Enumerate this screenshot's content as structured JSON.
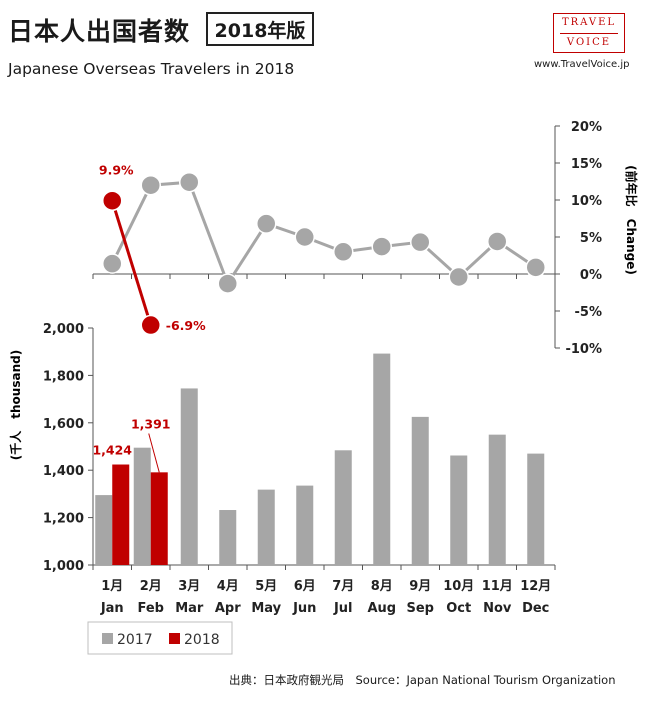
{
  "header": {
    "title": "日本人出国者数",
    "edition": "2018年版",
    "subtitle": "Japanese Overseas Travelers in 2018",
    "logo_line1": "TRAVEL",
    "logo_line2": "VOICE",
    "website": "www.TravelVoice.jp",
    "source": "出典：日本政府観光局　Source：Japan  National Tourism   Organization"
  },
  "colors": {
    "series_2017": "#a6a6a6",
    "series_2018": "#c00000",
    "axis": "#555555",
    "logo": "#c00000"
  },
  "chart_data": [
    {
      "type": "bar",
      "categories": [
        "1月",
        "2月",
        "3月",
        "4月",
        "5月",
        "6月",
        "7月",
        "8月",
        "9月",
        "10月",
        "11月",
        "12月"
      ],
      "categories_en": [
        "Jan",
        "Feb",
        "Mar",
        "Apr",
        "May",
        "Jun",
        "Jul",
        "Aug",
        "Sep",
        "Oct",
        "Nov",
        "Dec"
      ],
      "series": [
        {
          "name": "2017",
          "values": [
            1295,
            1495,
            1745,
            1232,
            1318,
            1335,
            1484,
            1892,
            1625,
            1462,
            1550,
            1470
          ]
        },
        {
          "name": "2018",
          "values": [
            1424,
            1391,
            null,
            null,
            null,
            null,
            null,
            null,
            null,
            null,
            null,
            null
          ]
        }
      ],
      "data_labels_2018": [
        "1,424",
        "1,391"
      ],
      "ylabel": "(千人　thousand)",
      "ylim": [
        1000,
        2000
      ],
      "yticks": [
        1000,
        1200,
        1400,
        1600,
        1800,
        2000
      ],
      "ytick_labels": [
        "1,000",
        "1,200",
        "1,400",
        "1,600",
        "1,800",
        "2,000"
      ],
      "legend": [
        "2017",
        "2018"
      ],
      "legend_position": "bottom-left"
    },
    {
      "type": "line",
      "categories": [
        "1月",
        "2月",
        "3月",
        "4月",
        "5月",
        "6月",
        "7月",
        "8月",
        "9月",
        "10月",
        "11月",
        "12月"
      ],
      "series": [
        {
          "values": [
            1.4,
            12.0,
            12.4,
            -1.3,
            6.8,
            5.0,
            3.0,
            3.7,
            4.3,
            -0.4,
            4.4,
            0.9
          ]
        },
        {
          "values": [
            9.9,
            -6.9,
            null,
            null,
            null,
            null,
            null,
            null,
            null,
            null,
            null,
            null
          ]
        }
      ],
      "data_labels_2018": [
        "9.9%",
        "-6.9%"
      ],
      "ylabel": "(前年比　Change)",
      "ylim": [
        -10,
        20
      ],
      "yticks": [
        -10,
        -5,
        0,
        5,
        10,
        15,
        20
      ],
      "ytick_labels": [
        "-10%",
        "-5%",
        "0%",
        "5%",
        "10%",
        "15%",
        "20%"
      ],
      "y_axis_side": "right"
    }
  ]
}
